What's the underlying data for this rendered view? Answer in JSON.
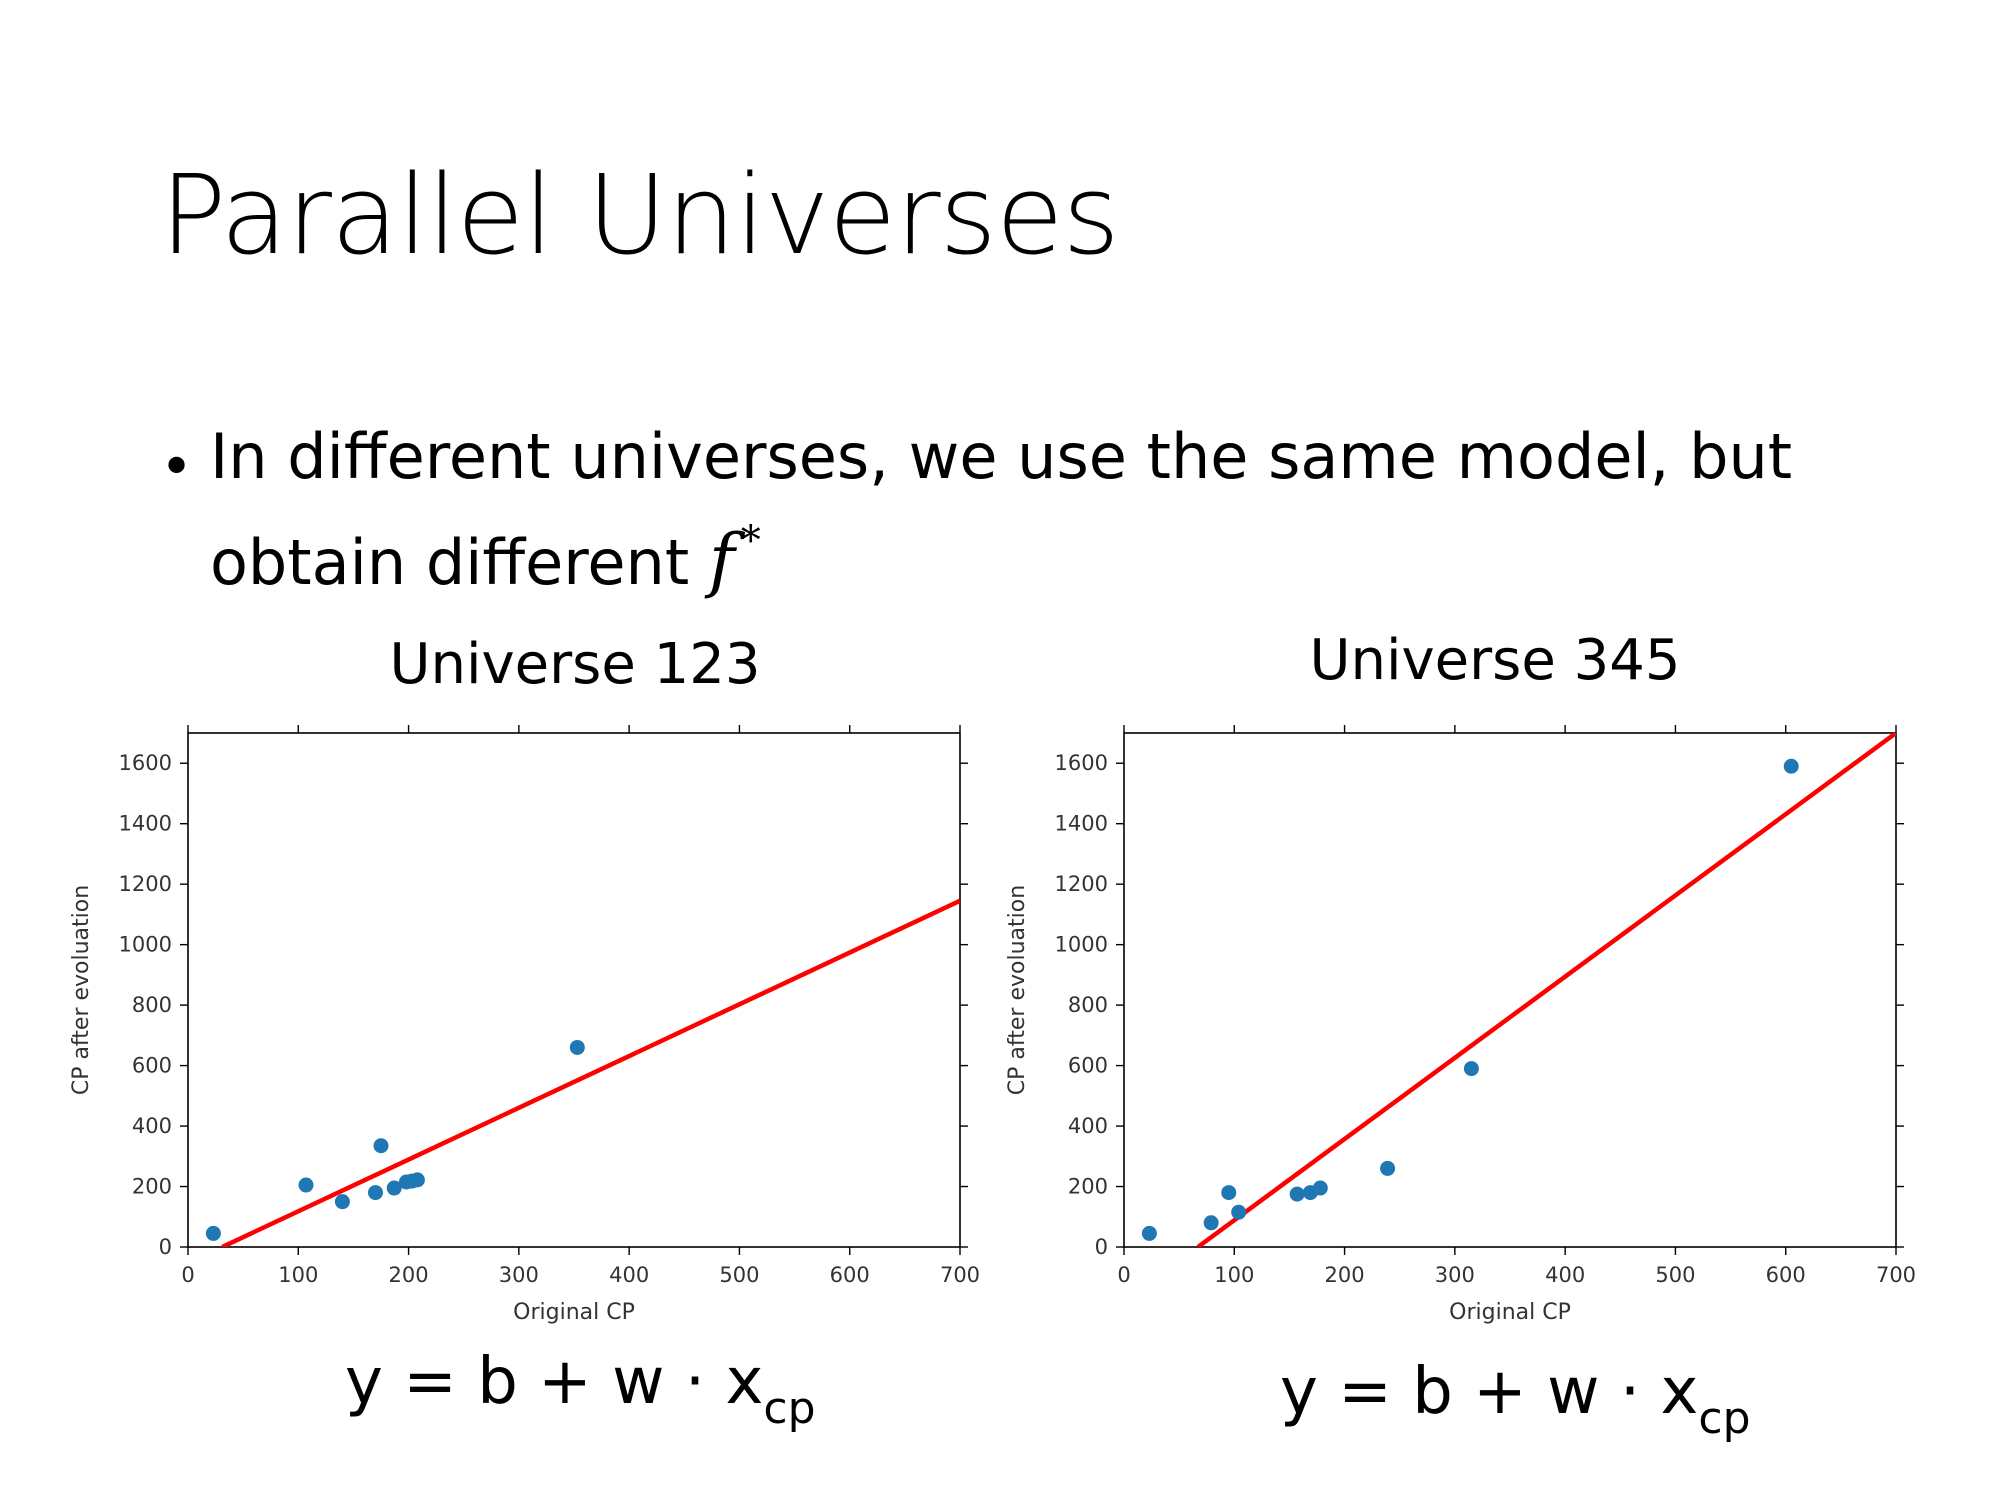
{
  "slide": {
    "title": "Parallel Universes",
    "bullet_bullet": "•",
    "bullet_text": "In different universes, we use the same model, but obtain different",
    "bullet_math": "f",
    "bullet_math_sup": "*"
  },
  "panels": [
    {
      "title": "Universe 123",
      "formula_main": "y = b + w · x",
      "formula_sub": "cp"
    },
    {
      "title": "Universe 345",
      "formula_main": "y = b + w · x",
      "formula_sub": "cp"
    }
  ],
  "chart_data": [
    {
      "type": "scatter",
      "title": "Universe 123",
      "xlabel": "Original CP",
      "ylabel": "CP after evoluation",
      "xlim": [
        0,
        700
      ],
      "ylim": [
        0,
        1700
      ],
      "xticks": [
        0,
        100,
        200,
        300,
        400,
        500,
        600,
        700
      ],
      "yticks": [
        0,
        200,
        400,
        600,
        800,
        1000,
        1200,
        1400,
        1600
      ],
      "point_color": "#1f77b4",
      "line_color": "#ff0000",
      "points": [
        {
          "x": 23,
          "y": 45
        },
        {
          "x": 107,
          "y": 205
        },
        {
          "x": 140,
          "y": 150
        },
        {
          "x": 170,
          "y": 180
        },
        {
          "x": 175,
          "y": 335
        },
        {
          "x": 187,
          "y": 195
        },
        {
          "x": 198,
          "y": 215
        },
        {
          "x": 203,
          "y": 218
        },
        {
          "x": 208,
          "y": 222
        },
        {
          "x": 353,
          "y": 660
        }
      ],
      "fit_line": {
        "x": [
          31,
          700
        ],
        "y": [
          0,
          1145
        ]
      }
    },
    {
      "type": "scatter",
      "title": "Universe 345",
      "xlabel": "Original CP",
      "ylabel": "CP after evoluation",
      "xlim": [
        0,
        700
      ],
      "ylim": [
        0,
        1700
      ],
      "xticks": [
        0,
        100,
        200,
        300,
        400,
        500,
        600,
        700
      ],
      "yticks": [
        0,
        200,
        400,
        600,
        800,
        1000,
        1200,
        1400,
        1600
      ],
      "point_color": "#1f77b4",
      "line_color": "#ff0000",
      "points": [
        {
          "x": 23,
          "y": 45
        },
        {
          "x": 79,
          "y": 80
        },
        {
          "x": 95,
          "y": 180
        },
        {
          "x": 104,
          "y": 115
        },
        {
          "x": 157,
          "y": 175
        },
        {
          "x": 169,
          "y": 180
        },
        {
          "x": 178,
          "y": 195
        },
        {
          "x": 239,
          "y": 260
        },
        {
          "x": 315,
          "y": 590
        },
        {
          "x": 605,
          "y": 1590
        }
      ],
      "fit_line": {
        "x": [
          67,
          700
        ],
        "y": [
          0,
          1700
        ]
      }
    }
  ]
}
